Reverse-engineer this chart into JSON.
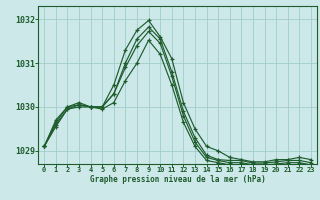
{
  "background_color": "#cde8e8",
  "grid_color": "#a0cccc",
  "line_color": "#1e5c2e",
  "xlabel": "Graphe pression niveau de la mer (hPa)",
  "ylim": [
    1028.7,
    1032.3
  ],
  "xlim": [
    -0.5,
    23.5
  ],
  "yticks": [
    1029,
    1030,
    1031,
    1032
  ],
  "xticks": [
    0,
    1,
    2,
    3,
    4,
    5,
    6,
    7,
    8,
    9,
    10,
    11,
    12,
    13,
    14,
    15,
    16,
    17,
    18,
    19,
    20,
    21,
    22,
    23
  ],
  "series": [
    [
      1029.1,
      1029.7,
      1030.0,
      1030.1,
      1030.0,
      1030.0,
      1030.5,
      1031.3,
      1031.75,
      1031.97,
      1031.6,
      1031.1,
      1030.1,
      1029.5,
      1029.1,
      1029.0,
      1028.85,
      1028.8,
      1028.75,
      1028.75,
      1028.8,
      1028.8,
      1028.85,
      1028.8
    ],
    [
      1029.1,
      1029.65,
      1030.0,
      1030.05,
      1030.0,
      1030.0,
      1030.3,
      1031.0,
      1031.55,
      1031.82,
      1031.55,
      1030.8,
      1029.9,
      1029.3,
      1028.9,
      1028.8,
      1028.78,
      1028.78,
      1028.72,
      1028.72,
      1028.75,
      1028.78,
      1028.78,
      1028.73
    ],
    [
      1029.1,
      1029.6,
      1029.95,
      1030.05,
      1030.0,
      1030.0,
      1030.3,
      1030.9,
      1031.4,
      1031.72,
      1031.45,
      1030.7,
      1029.8,
      1029.2,
      1028.85,
      1028.78,
      1028.73,
      1028.73,
      1028.68,
      1028.68,
      1028.7,
      1028.73,
      1028.73,
      1028.68
    ],
    [
      1029.1,
      1029.55,
      1029.95,
      1030.0,
      1030.0,
      1029.95,
      1030.1,
      1030.6,
      1031.0,
      1031.52,
      1031.2,
      1030.5,
      1029.65,
      1029.1,
      1028.78,
      1028.73,
      1028.68,
      1028.68,
      1028.62,
      1028.62,
      1028.65,
      1028.68,
      1028.68,
      1028.62
    ]
  ]
}
